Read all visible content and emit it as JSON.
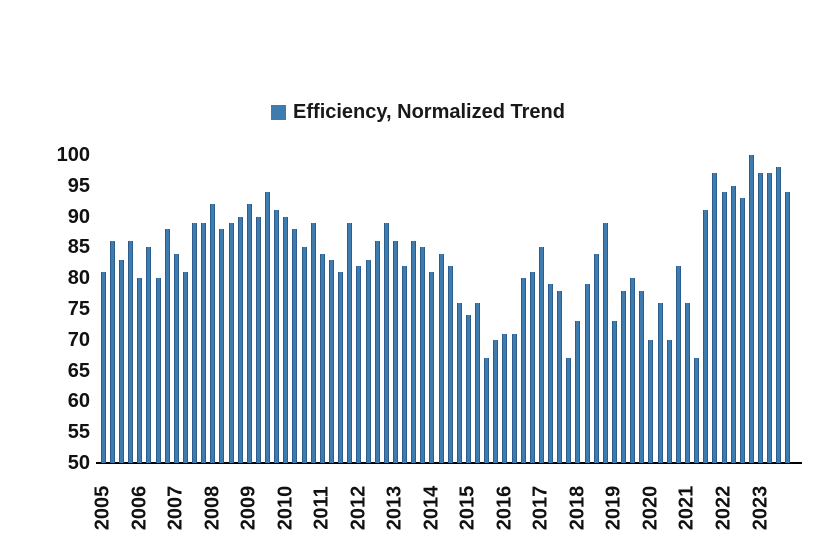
{
  "legend": {
    "label": "Efficiency, Normalized Trend",
    "marker_color": "#3e7caf"
  },
  "chart_data": {
    "type": "bar",
    "title": "",
    "series_name": "Efficiency, Normalized Trend",
    "xlabel": "",
    "ylabel": "",
    "ylim": [
      50,
      100
    ],
    "ytick_step": 5,
    "yticks": [
      100,
      95,
      90,
      85,
      80,
      75,
      70,
      65,
      60,
      55,
      50
    ],
    "grid": false,
    "legend_position": "top-center",
    "bars_per_year": 4,
    "years": [
      "2005",
      "2006",
      "2007",
      "2008",
      "2009",
      "2010",
      "2011",
      "2012",
      "2013",
      "2014",
      "2015",
      "2016",
      "2017",
      "2018",
      "2019",
      "2020",
      "2021",
      "2022",
      "2023"
    ],
    "values": [
      81,
      86,
      83,
      86,
      80,
      85,
      80,
      88,
      84,
      81,
      89,
      89,
      92,
      88,
      89,
      90,
      92,
      90,
      94,
      91,
      90,
      88,
      85,
      89,
      84,
      83,
      81,
      89,
      82,
      83,
      86,
      89,
      86,
      82,
      86,
      85,
      81,
      84,
      82,
      76,
      74,
      76,
      67,
      70,
      71,
      71,
      80,
      81,
      85,
      79,
      78,
      67,
      73,
      79,
      84,
      89,
      73,
      78,
      80,
      78,
      70,
      76,
      70,
      82,
      76,
      67,
      91,
      97,
      94,
      95,
      93,
      100,
      97,
      97,
      98,
      94
    ],
    "bar_color": "#3e7caf",
    "bar_edge_color": "#2b5e8c",
    "axis_color": "#000000",
    "text_color": "#111111"
  }
}
